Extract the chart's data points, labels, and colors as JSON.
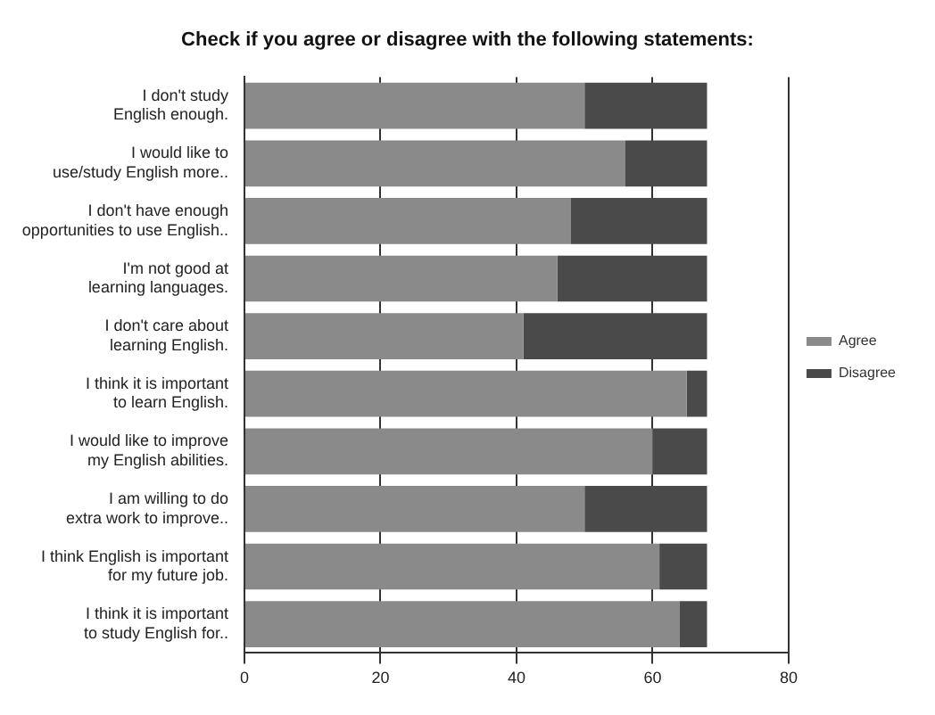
{
  "chart_data": {
    "type": "bar",
    "orientation": "horizontal",
    "stacked": true,
    "title": "Check if you agree or disagree with the following statements:",
    "categories": [
      "I don't study English enough.",
      "I would like to use/study English more..",
      "I don't have enough opportunities to use English..",
      "I'm not good at learning languages.",
      "I don't care about learning English.",
      "I think it is important to learn English.",
      "I would like to improve my English abilities.",
      "I am willing to do extra work to improve..",
      "I think English is important for my future job.",
      "I think it is important to study English for.."
    ],
    "series": [
      {
        "name": "Agree",
        "color": "#8a8a8a",
        "values": [
          50,
          56,
          48,
          46,
          41,
          65,
          60,
          50,
          61,
          64
        ]
      },
      {
        "name": "Disagree",
        "color": "#4a4a4a",
        "values": [
          18,
          12,
          20,
          22,
          27,
          3,
          8,
          18,
          7,
          4
        ]
      }
    ],
    "xlim": [
      0,
      80
    ],
    "xticks": [
      0,
      20,
      40,
      60,
      80
    ],
    "grid": "x",
    "legend": "right"
  }
}
